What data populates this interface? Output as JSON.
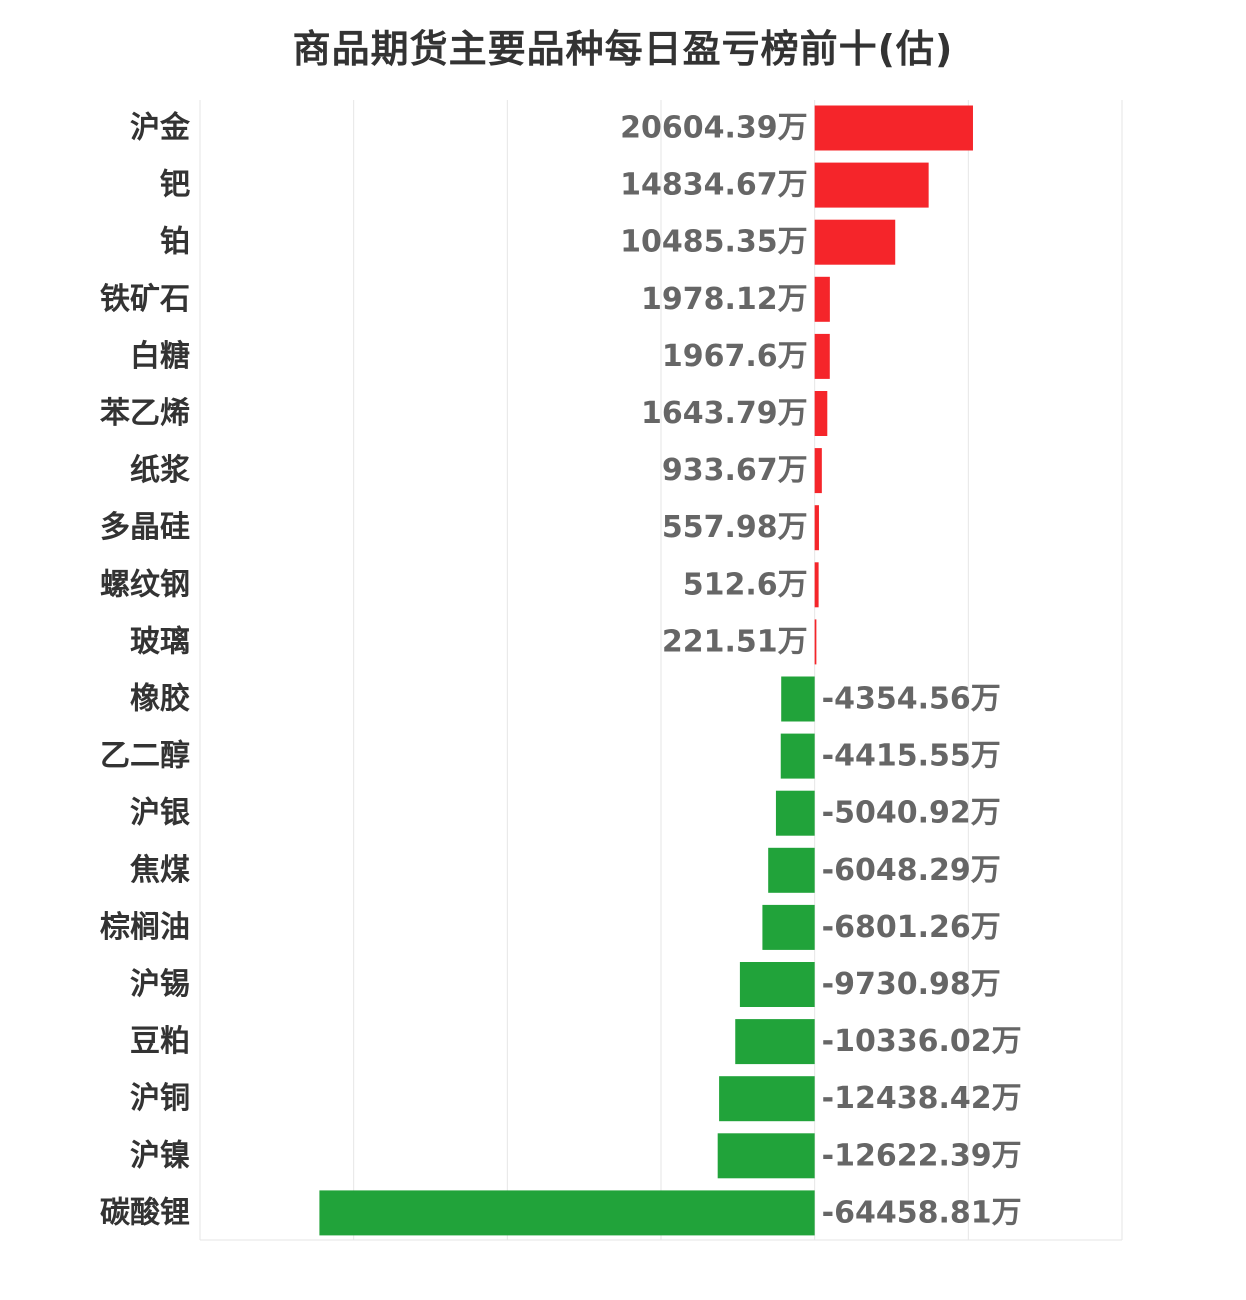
{
  "chart_data": {
    "type": "bar",
    "orientation": "horizontal",
    "title": "商品期货主要品种每日盈亏榜前十(估)",
    "unit": "万",
    "categories": [
      "沪金",
      "钯",
      "铂",
      "铁矿石",
      "白糖",
      "苯乙烯",
      "纸浆",
      "多晶硅",
      "螺纹钢",
      "玻璃",
      "橡胶",
      "乙二醇",
      "沪银",
      "焦煤",
      "棕榈油",
      "沪锡",
      "豆粕",
      "沪铜",
      "沪镍",
      "碳酸锂"
    ],
    "values": [
      20604.39,
      14834.67,
      10485.35,
      1978.12,
      1967.6,
      1643.79,
      933.67,
      557.98,
      512.6,
      221.51,
      -4354.56,
      -4415.55,
      -5040.92,
      -6048.29,
      -6801.26,
      -9730.98,
      -10336.02,
      -12438.42,
      -12622.39,
      -64458.81
    ],
    "value_labels": [
      "20604.39万",
      "14834.67万",
      "10485.35万",
      "1978.12万",
      "1967.6万",
      "1643.79万",
      "933.67万",
      "557.98万",
      "512.6万",
      "221.51万",
      "-4354.56万",
      "-4415.55万",
      "-5040.92万",
      "-6048.29万",
      "-6801.26万",
      "-9730.98万",
      "-10336.02万",
      "-12438.42万",
      "-12622.39万",
      "-64458.81万"
    ],
    "xlim": [
      -80000,
      40000
    ],
    "grid": true,
    "legend": "none",
    "colors": {
      "positive": "#f5252a",
      "negative": "#21a33a",
      "grid": "#e6e6e6",
      "category_text": "#333333",
      "value_text": "#666666"
    }
  }
}
